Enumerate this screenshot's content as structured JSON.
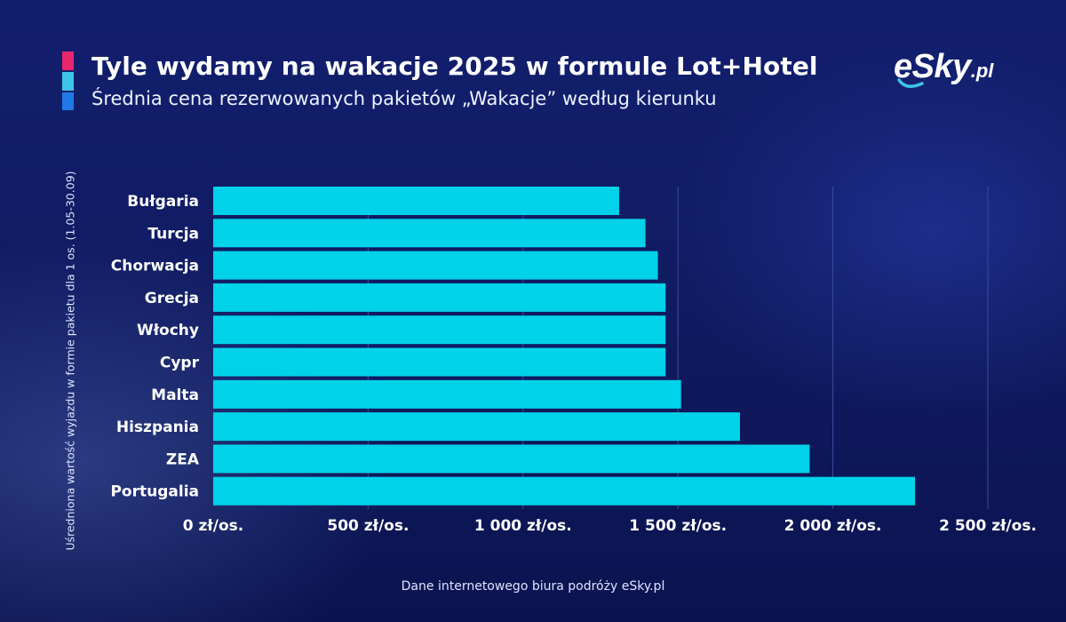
{
  "header": {
    "title": "Tyle wydamy na wakacje 2025 w formule Lot+Hotel",
    "subtitle": "Średnia cena rezerwowanych pakietów „Wakacje” według kierunku",
    "accent_colors": [
      "#e8266e",
      "#3cc5e8",
      "#1f7ae8"
    ]
  },
  "logo": {
    "name": "eSky",
    "tld": ".pl"
  },
  "footer": {
    "source": "Dane internetowego biura podróży eSky.pl"
  },
  "colors": {
    "bar": "#00d2ea",
    "grid": "#3a4c9c"
  },
  "chart_data": {
    "type": "bar",
    "orientation": "horizontal",
    "ylabel": "Uśredniona wartość wyjazdu w formie pakietu dla 1 os. (1.05-30.09)",
    "categories": [
      "Bułgaria",
      "Turcja",
      "Chorwacja",
      "Grecja",
      "Włochy",
      "Cypr",
      "Malta",
      "Hiszpania",
      "ZEA",
      "Portugalia"
    ],
    "values": [
      1310,
      1395,
      1435,
      1460,
      1460,
      1460,
      1510,
      1700,
      1925,
      2265
    ],
    "xlim": [
      0,
      2500
    ],
    "xticks": [
      0,
      500,
      1000,
      1500,
      2000,
      2500
    ],
    "xtick_labels": [
      "0 zł/os.",
      "500 zł/os.",
      "1 000 zł/os.",
      "1 500 zł/os.",
      "2 000 zł/os.",
      "2 500 zł/os."
    ],
    "grid": true,
    "legend": "none"
  }
}
